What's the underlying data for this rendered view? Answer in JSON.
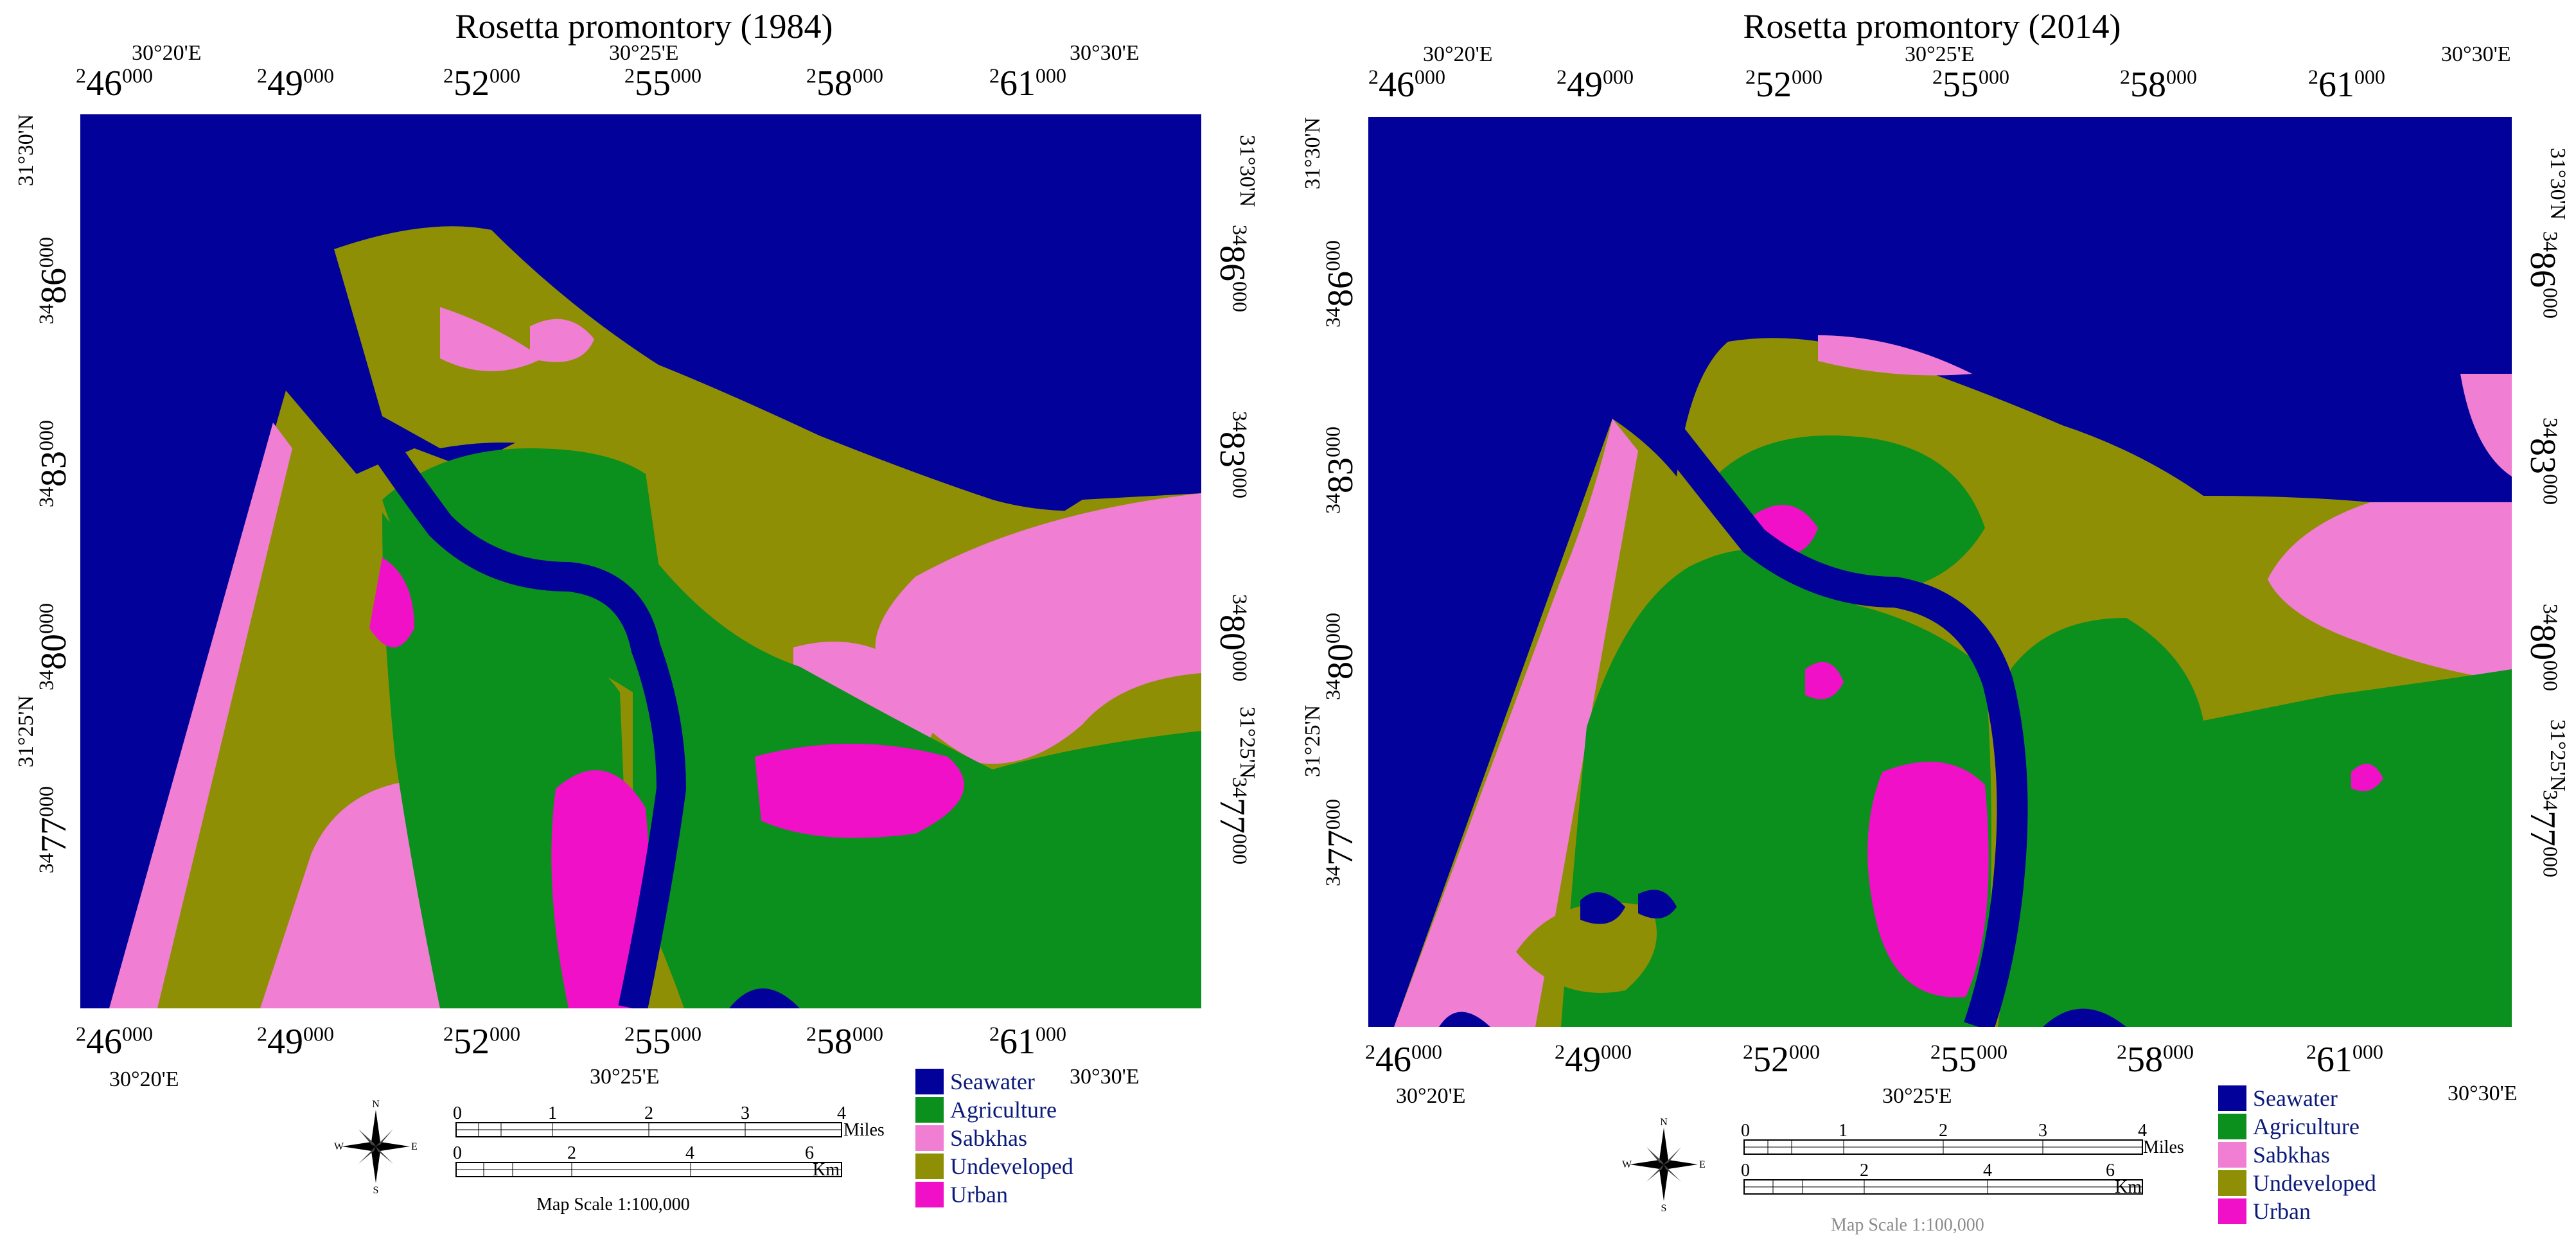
{
  "panels": [
    {
      "title": "Rosetta promontory (1984)",
      "top_lon_labels": [
        "30°20'E",
        "30°25'E",
        "30°30'E"
      ],
      "bottom_lon_labels": [
        "30°20'E",
        "30°25'E",
        "30°30'E"
      ],
      "easting_base": [
        "2",
        "2",
        "2",
        "2",
        "2",
        "2"
      ],
      "easting_main": [
        "46",
        "49",
        "52",
        "55",
        "58",
        "61"
      ],
      "easting_sup": [
        "000",
        "000",
        "000",
        "000",
        "000",
        "000"
      ],
      "left_lat_labels": [
        "31°30'N",
        "31°25'N"
      ],
      "right_lat_labels": [
        "31°30'N",
        "31°25'N"
      ],
      "northing_base": [
        "34",
        "34",
        "34",
        "34"
      ],
      "northing_main": [
        "86",
        "83",
        "80",
        "77"
      ],
      "northing_sup": [
        "000",
        "000",
        "000",
        "000"
      ],
      "legend": [
        "Seawater",
        "Agriculture",
        "Sabkhas",
        "Undeveloped",
        "Urban"
      ],
      "scale_miles_ticks": [
        "0",
        "1",
        "2",
        "3",
        "4"
      ],
      "scale_miles_unit": "Miles",
      "scale_km_ticks": [
        "0",
        "2",
        "4",
        "6"
      ],
      "scale_km_unit": "Km",
      "map_scale": "Map Scale 1:100,000",
      "compass": {
        "n": "N",
        "s": "S",
        "e": "E",
        "w": "W"
      }
    },
    {
      "title": "Rosetta promontory (2014)",
      "top_lon_labels": [
        "30°20'E",
        "30°25'E",
        "30°30'E"
      ],
      "bottom_lon_labels": [
        "30°20'E",
        "30°25'E",
        "30°30'E"
      ],
      "easting_base": [
        "2",
        "2",
        "2",
        "2",
        "2",
        "2"
      ],
      "easting_main": [
        "46",
        "49",
        "52",
        "55",
        "58",
        "61"
      ],
      "easting_sup": [
        "000",
        "000",
        "000",
        "000",
        "000",
        "000"
      ],
      "left_lat_labels": [
        "31°30'N",
        "31°25'N"
      ],
      "right_lat_labels": [
        "31°30'N",
        "31°25'N"
      ],
      "northing_base": [
        "34",
        "34",
        "34",
        "34"
      ],
      "northing_main": [
        "86",
        "83",
        "80",
        "77"
      ],
      "northing_sup": [
        "000",
        "000",
        "000",
        "000"
      ],
      "legend": [
        "Seawater",
        "Agriculture",
        "Sabkhas",
        "Undeveloped",
        "Urban"
      ],
      "scale_miles_ticks": [
        "0",
        "1",
        "2",
        "3",
        "4"
      ],
      "scale_miles_unit": "Miles",
      "scale_km_ticks": [
        "0",
        "2",
        "4",
        "6"
      ],
      "scale_km_unit": "Km",
      "map_scale": "Map Scale 1:100,000",
      "compass": {
        "n": "N",
        "s": "S",
        "e": "E",
        "w": "W"
      }
    }
  ],
  "colors": {
    "seawater": "#02029a",
    "agriculture": "#0b8f1d",
    "sabkhas": "#f07ed3",
    "undeveloped": "#8f8f06",
    "urban": "#f010c8"
  }
}
